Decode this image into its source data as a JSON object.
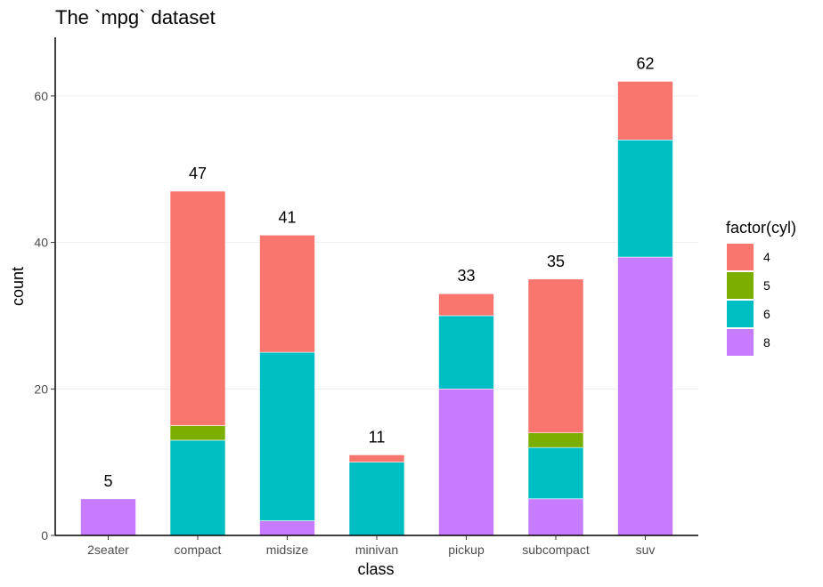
{
  "chart_data": {
    "type": "bar",
    "stacked": true,
    "title": "The `mpg` dataset",
    "xlabel": "class",
    "ylabel": "count",
    "categories": [
      "2seater",
      "compact",
      "midsize",
      "minivan",
      "pickup",
      "subcompact",
      "suv"
    ],
    "totals": [
      5,
      47,
      41,
      11,
      33,
      35,
      62
    ],
    "ylim": [
      0,
      68
    ],
    "yticks": [
      0,
      20,
      40,
      60
    ],
    "grid": true,
    "legend": {
      "title": "factor(cyl)",
      "position": "right",
      "entries": [
        "4",
        "5",
        "6",
        "8"
      ]
    },
    "series": [
      {
        "name": "4",
        "color": "#F8766D",
        "values": [
          0,
          32,
          16,
          1,
          3,
          21,
          8
        ]
      },
      {
        "name": "5",
        "color": "#7CAE00",
        "values": [
          0,
          2,
          0,
          0,
          0,
          2,
          0
        ]
      },
      {
        "name": "6",
        "color": "#00BFC4",
        "values": [
          0,
          13,
          23,
          10,
          10,
          7,
          16
        ]
      },
      {
        "name": "8",
        "color": "#C77CFF",
        "values": [
          5,
          0,
          2,
          0,
          20,
          5,
          38
        ]
      }
    ]
  }
}
